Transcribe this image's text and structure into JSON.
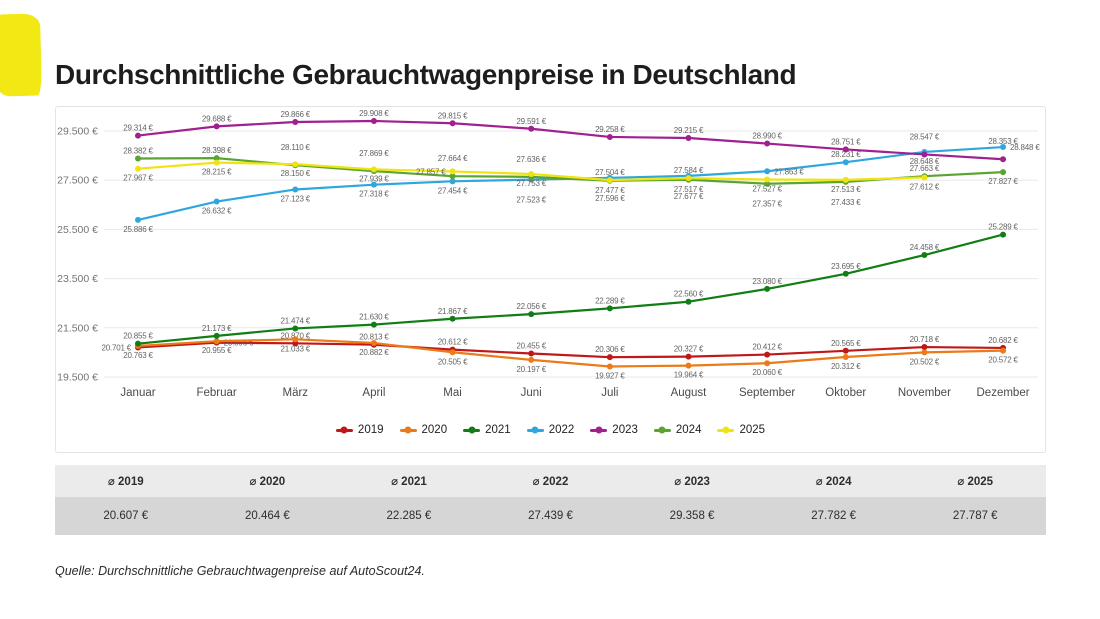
{
  "page": {
    "title": "Durchschnittliche Gebrauchtwagenpreise in Deutschland",
    "source_note": "Quelle: Durchschnittliche Gebrauchtwagenpreise auf AutoScout24.",
    "accent_color": "#f2e813"
  },
  "chart_data": {
    "type": "line",
    "title": "Durchschnittliche Gebrauchtwagenpreise in Deutschland",
    "unit": "€",
    "categories": [
      "Januar",
      "Februar",
      "März",
      "April",
      "Mai",
      "Juni",
      "Juli",
      "August",
      "September",
      "Oktober",
      "November",
      "Dezember"
    ],
    "ylim": [
      19500,
      29500
    ],
    "y_ticks": [
      19500,
      21500,
      23500,
      25500,
      27500,
      29500
    ],
    "grid": "horizontal",
    "legend_position": "bottom",
    "series": [
      {
        "name": "2019",
        "color": "#c01818",
        "values": [
          20701,
          20896,
          20870,
          20813,
          20612,
          20455,
          20306,
          20327,
          20412,
          20565,
          20718,
          20682
        ],
        "label_side": [
          "l",
          "r",
          "a",
          "a",
          "a",
          "a",
          "a",
          "a",
          "a",
          "a",
          "a",
          "a"
        ]
      },
      {
        "name": "2020",
        "color": "#eb7a18",
        "values": [
          20763,
          20955,
          21033,
          20882,
          20505,
          20197,
          19927,
          19964,
          20060,
          20312,
          20502,
          20572
        ],
        "label_side": [
          "b",
          "b",
          "b",
          "b",
          "b",
          "b",
          "b",
          "b",
          "b",
          "b",
          "b",
          "b"
        ]
      },
      {
        "name": "2021",
        "color": "#127d14",
        "values": [
          20855,
          21173,
          21474,
          21630,
          21867,
          22056,
          22289,
          22560,
          23080,
          23695,
          24458,
          25289
        ],
        "label_side": [
          "a",
          "a",
          "a",
          "a",
          "a",
          "a",
          "a",
          "a",
          "a",
          "a",
          "a",
          "a"
        ]
      },
      {
        "name": "2022",
        "color": "#2fa7dd",
        "values": [
          25886,
          26632,
          27123,
          27318,
          27454,
          27523,
          27596,
          27677,
          27863,
          28231,
          28648,
          28848
        ],
        "label_side": [
          "b",
          "b",
          "b",
          "b",
          "b",
          "b2",
          "b2",
          "b2",
          "r",
          "a",
          "b",
          "r"
        ]
      },
      {
        "name": "2023",
        "color": "#a02090",
        "values": [
          29314,
          29688,
          29866,
          29908,
          29815,
          29591,
          29258,
          29215,
          28990,
          28751,
          28547,
          28353
        ],
        "label_side": [
          "a",
          "a",
          "a",
          "a",
          "a",
          "a",
          "a",
          "a",
          "a",
          "a",
          "a2",
          "a2"
        ]
      },
      {
        "name": "2024",
        "color": "#5aa530",
        "values": [
          28382,
          28398,
          28110,
          27869,
          27664,
          27636,
          27477,
          27517,
          27357,
          27433,
          27663,
          27827
        ],
        "label_side": [
          "a",
          "a",
          "a2",
          "a2",
          "a2",
          "a2",
          "b",
          "b",
          "b2",
          "b2",
          "a",
          "b"
        ]
      },
      {
        "name": "2025",
        "color": "#efe412",
        "values": [
          27967,
          28215,
          28150,
          27939,
          27857,
          27753,
          27504,
          27584,
          27527,
          27513,
          27612,
          null
        ],
        "label_side": [
          "b",
          "b",
          "b",
          "b",
          "l",
          "b",
          "a",
          "a",
          "b",
          "b",
          "b",
          "b"
        ]
      }
    ]
  },
  "summary_table": {
    "columns": [
      {
        "header": "⌀ 2019",
        "value": "20.607 €"
      },
      {
        "header": "⌀ 2020",
        "value": "20.464 €"
      },
      {
        "header": "⌀ 2021",
        "value": "22.285 €"
      },
      {
        "header": "⌀ 2022",
        "value": "27.439 €"
      },
      {
        "header": "⌀ 2023",
        "value": "29.358 €"
      },
      {
        "header": "⌀ 2024",
        "value": "27.782 €"
      },
      {
        "header": "⌀ 2025",
        "value": "27.787 €"
      }
    ]
  }
}
